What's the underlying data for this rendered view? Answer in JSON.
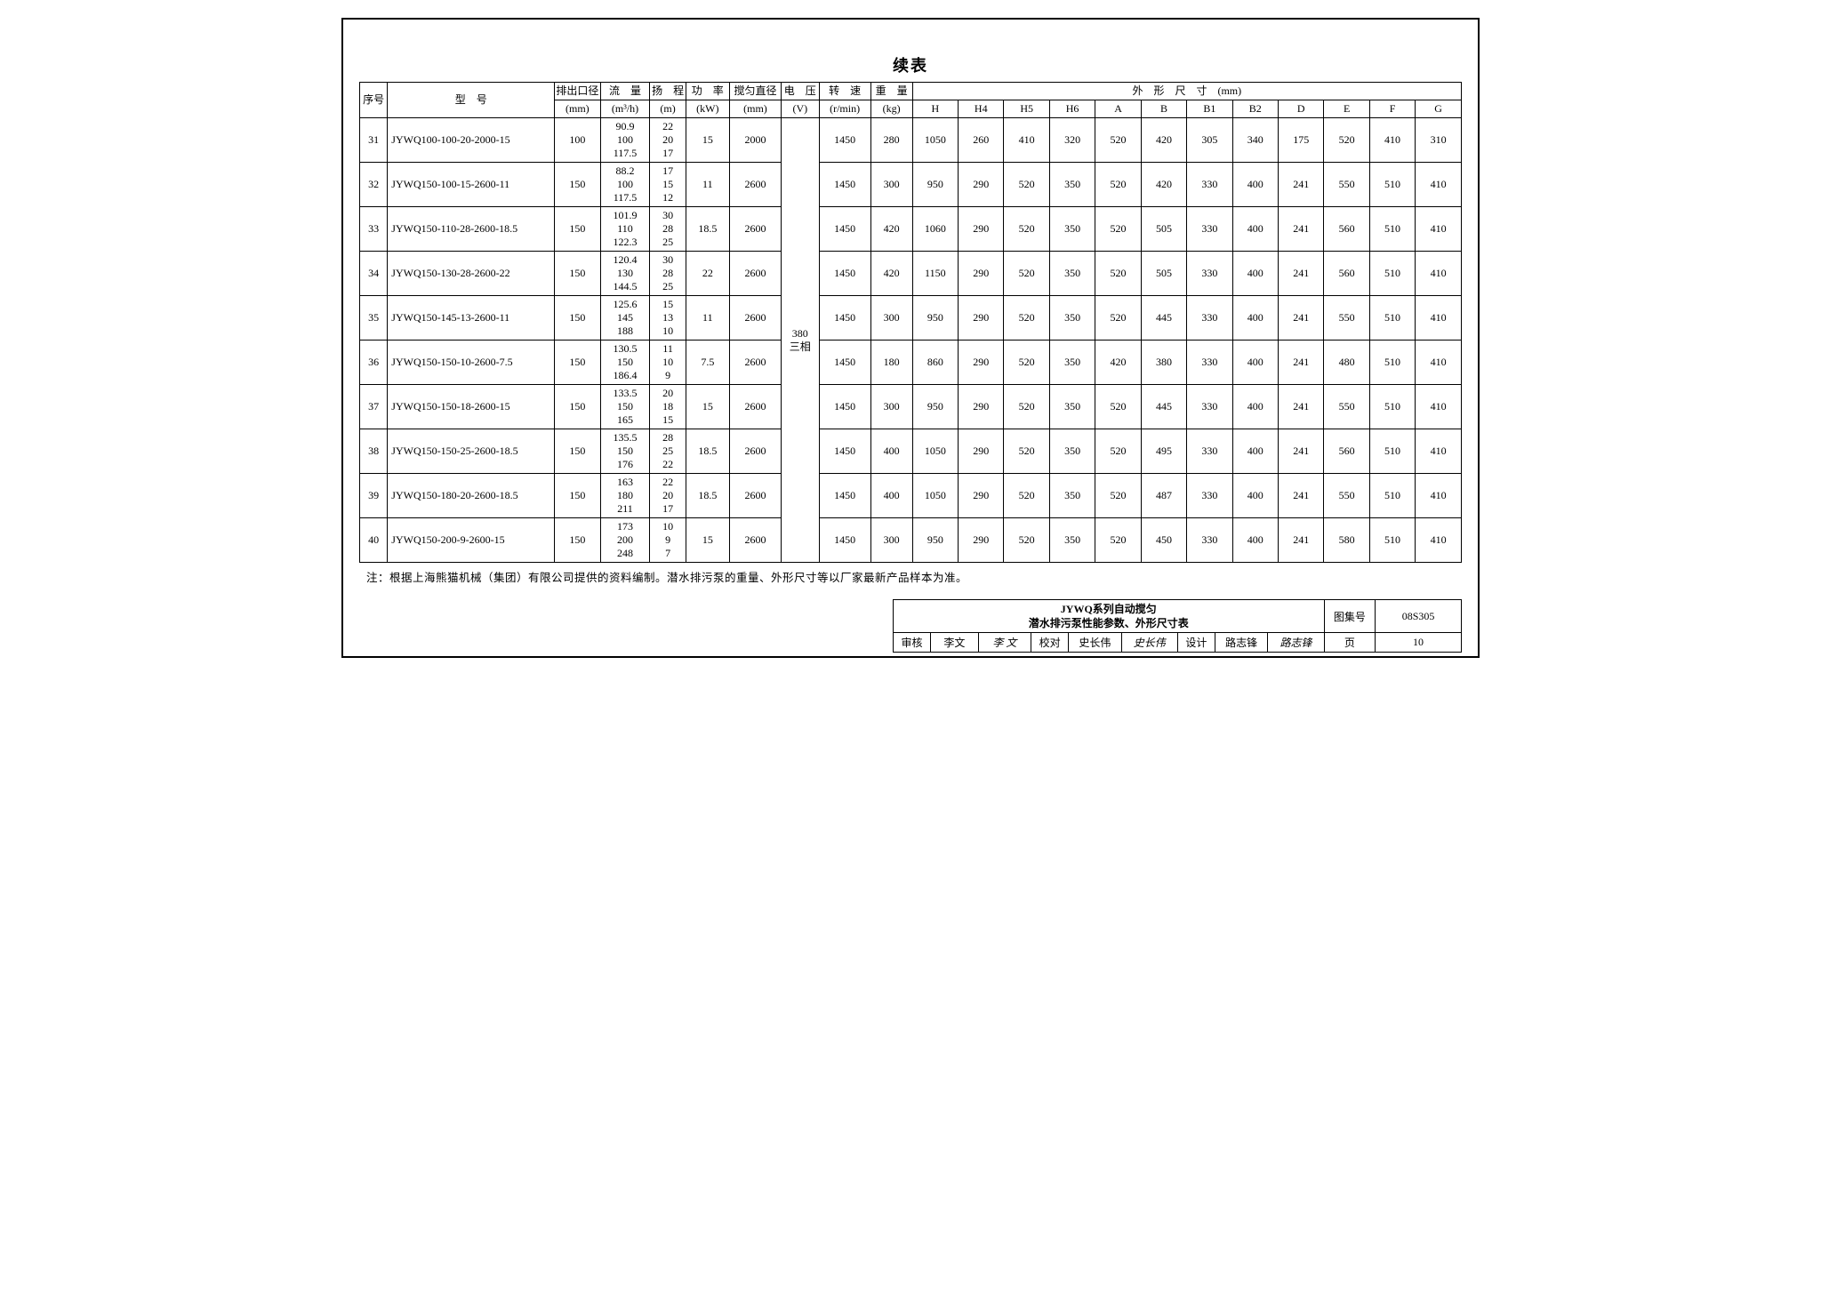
{
  "title": "续表",
  "columns_top": {
    "seq": "序号",
    "model": "型　号",
    "outlet": "排出口径",
    "flow": "流　量",
    "head": "扬　程",
    "power": "功　率",
    "mixdia": "搅匀直径",
    "volt": "电　压",
    "speed": "转　速",
    "weight": "重　量",
    "dims": "外　形　尺　寸　(mm)"
  },
  "columns_units": {
    "outlet": "(mm)",
    "flow": "(m³/h)",
    "head": "(m)",
    "power": "(kW)",
    "mixdia": "(mm)",
    "volt": "(V)",
    "speed": "(r/min)",
    "weight": "(kg)"
  },
  "dim_cols": [
    "H",
    "H4",
    "H5",
    "H6",
    "A",
    "B",
    "B1",
    "B2",
    "D",
    "E",
    "F",
    "G"
  ],
  "voltage_merged": "380\n三相",
  "rows": [
    {
      "seq": "31",
      "model": "JYWQ100-100-20-2000-15",
      "outlet": "100",
      "flow": "90.9\n100\n117.5",
      "head": "22\n20\n17",
      "power": "15",
      "mixdia": "2000",
      "speed": "1450",
      "weight": "280",
      "dims": [
        "1050",
        "260",
        "410",
        "320",
        "520",
        "420",
        "305",
        "340",
        "175",
        "520",
        "410",
        "310"
      ]
    },
    {
      "seq": "32",
      "model": "JYWQ150-100-15-2600-11",
      "outlet": "150",
      "flow": "88.2\n100\n117.5",
      "head": "17\n15\n12",
      "power": "11",
      "mixdia": "2600",
      "speed": "1450",
      "weight": "300",
      "dims": [
        "950",
        "290",
        "520",
        "350",
        "520",
        "420",
        "330",
        "400",
        "241",
        "550",
        "510",
        "410"
      ]
    },
    {
      "seq": "33",
      "model": "JYWQ150-110-28-2600-18.5",
      "outlet": "150",
      "flow": "101.9\n110\n122.3",
      "head": "30\n28\n25",
      "power": "18.5",
      "mixdia": "2600",
      "speed": "1450",
      "weight": "420",
      "dims": [
        "1060",
        "290",
        "520",
        "350",
        "520",
        "505",
        "330",
        "400",
        "241",
        "560",
        "510",
        "410"
      ]
    },
    {
      "seq": "34",
      "model": "JYWQ150-130-28-2600-22",
      "outlet": "150",
      "flow": "120.4\n130\n144.5",
      "head": "30\n28\n25",
      "power": "22",
      "mixdia": "2600",
      "speed": "1450",
      "weight": "420",
      "dims": [
        "1150",
        "290",
        "520",
        "350",
        "520",
        "505",
        "330",
        "400",
        "241",
        "560",
        "510",
        "410"
      ]
    },
    {
      "seq": "35",
      "model": "JYWQ150-145-13-2600-11",
      "outlet": "150",
      "flow": "125.6\n145\n188",
      "head": "15\n13\n10",
      "power": "11",
      "mixdia": "2600",
      "speed": "1450",
      "weight": "300",
      "dims": [
        "950",
        "290",
        "520",
        "350",
        "520",
        "445",
        "330",
        "400",
        "241",
        "550",
        "510",
        "410"
      ]
    },
    {
      "seq": "36",
      "model": "JYWQ150-150-10-2600-7.5",
      "outlet": "150",
      "flow": "130.5\n150\n186.4",
      "head": "11\n10\n9",
      "power": "7.5",
      "mixdia": "2600",
      "speed": "1450",
      "weight": "180",
      "dims": [
        "860",
        "290",
        "520",
        "350",
        "420",
        "380",
        "330",
        "400",
        "241",
        "480",
        "510",
        "410"
      ]
    },
    {
      "seq": "37",
      "model": "JYWQ150-150-18-2600-15",
      "outlet": "150",
      "flow": "133.5\n150\n165",
      "head": "20\n18\n15",
      "power": "15",
      "mixdia": "2600",
      "speed": "1450",
      "weight": "300",
      "dims": [
        "950",
        "290",
        "520",
        "350",
        "520",
        "445",
        "330",
        "400",
        "241",
        "550",
        "510",
        "410"
      ]
    },
    {
      "seq": "38",
      "model": "JYWQ150-150-25-2600-18.5",
      "outlet": "150",
      "flow": "135.5\n150\n176",
      "head": "28\n25\n22",
      "power": "18.5",
      "mixdia": "2600",
      "speed": "1450",
      "weight": "400",
      "dims": [
        "1050",
        "290",
        "520",
        "350",
        "520",
        "495",
        "330",
        "400",
        "241",
        "560",
        "510",
        "410"
      ]
    },
    {
      "seq": "39",
      "model": "JYWQ150-180-20-2600-18.5",
      "outlet": "150",
      "flow": "163\n180\n211",
      "head": "22\n20\n17",
      "power": "18.5",
      "mixdia": "2600",
      "speed": "1450",
      "weight": "400",
      "dims": [
        "1050",
        "290",
        "520",
        "350",
        "520",
        "487",
        "330",
        "400",
        "241",
        "550",
        "510",
        "410"
      ]
    },
    {
      "seq": "40",
      "model": "JYWQ150-200-9-2600-15",
      "outlet": "150",
      "flow": "173\n200\n248",
      "head": "10\n9\n7",
      "power": "15",
      "mixdia": "2600",
      "speed": "1450",
      "weight": "300",
      "dims": [
        "950",
        "290",
        "520",
        "350",
        "520",
        "450",
        "330",
        "400",
        "241",
        "580",
        "510",
        "410"
      ]
    }
  ],
  "note": "注：根据上海熊猫机械（集团）有限公司提供的资料编制。潜水排污泵的重量、外形尺寸等以厂家最新产品样本为准。",
  "footer": {
    "caption": "JYWQ系列自动搅匀\n潜水排污泵性能参数、外形尺寸表",
    "atlas_label": "图集号",
    "atlas_no": "08S305",
    "review_label": "审核",
    "review_name": "李文",
    "review_sig": "李 文",
    "check_label": "校对",
    "check_name": "史长伟",
    "check_sig": "史长伟",
    "design_label": "设计",
    "design_name": "路志锋",
    "design_sig": "路志锋",
    "page_label": "页",
    "page_no": "10"
  },
  "col_widths": {
    "seq": "28px",
    "model": "168px",
    "outlet": "46px",
    "flow": "50px",
    "head": "36px",
    "power": "44px",
    "mixdia": "52px",
    "volt": "38px",
    "speed": "52px",
    "weight": "42px",
    "dim": "46px"
  },
  "colors": {
    "border": "#000000",
    "bg": "#ffffff",
    "text": "#000000"
  }
}
